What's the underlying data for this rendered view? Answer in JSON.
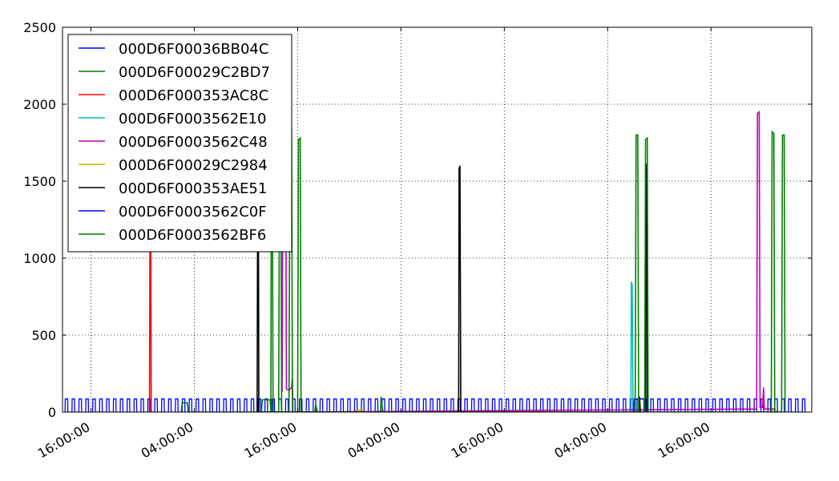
{
  "chart_data": {
    "type": "line",
    "title": "",
    "xlabel": "",
    "ylabel": "",
    "ylim": [
      0,
      2500
    ],
    "yticks": [
      0,
      500,
      1000,
      1500,
      2000,
      2500
    ],
    "x_unit": "hours",
    "xlim": [
      -3.3,
      83.7
    ],
    "xticks": [
      {
        "x": 0,
        "label": "16:00:00"
      },
      {
        "x": 12,
        "label": "04:00:00"
      },
      {
        "x": 24,
        "label": "16:00:00"
      },
      {
        "x": 36,
        "label": "04:00:00"
      },
      {
        "x": 48,
        "label": "16:00:00"
      },
      {
        "x": 60,
        "label": "04:00:00"
      },
      {
        "x": 72,
        "label": "16:00:00"
      }
    ],
    "grid": true,
    "legend_position": "top-left",
    "series": [
      {
        "name": "000D6F00036BB04C",
        "color": "#0000ff",
        "pattern": {
          "type": "cyclic",
          "start": -3.0,
          "end": 83.2,
          "period": 0.8,
          "pulse": 0.3,
          "high": 85,
          "low": 0
        },
        "points": []
      },
      {
        "name": "000D6F00029C2BD7",
        "color": "#008000",
        "points": [
          [
            10.5,
            0
          ],
          [
            10.6,
            60
          ],
          [
            11.2,
            60
          ],
          [
            11.3,
            0
          ],
          [
            26.0,
            0
          ],
          [
            26.1,
            50
          ],
          [
            26.3,
            0
          ],
          [
            33.6,
            0
          ],
          [
            33.7,
            100
          ],
          [
            33.9,
            0
          ]
        ]
      },
      {
        "name": "000D6F000353AC8C",
        "color": "#ff0000",
        "points": [
          [
            6.8,
            0
          ],
          [
            6.85,
            1100
          ],
          [
            6.95,
            1100
          ],
          [
            7.0,
            0
          ]
        ]
      },
      {
        "name": "000D6F0003562E10",
        "color": "#00bfbf",
        "points": [
          [
            62.7,
            0
          ],
          [
            62.75,
            840
          ],
          [
            62.85,
            830
          ],
          [
            62.95,
            0
          ]
        ]
      },
      {
        "name": "000D6F0003562C48",
        "color": "#bf00bf",
        "points": [
          [
            22.2,
            130
          ],
          [
            22.3,
            2050
          ],
          [
            22.6,
            2060
          ],
          [
            22.7,
            150
          ],
          [
            23.0,
            140
          ],
          [
            23.3,
            160
          ],
          [
            23.4,
            220
          ],
          [
            23.45,
            0
          ],
          [
            77.3,
            20
          ],
          [
            77.4,
            1940
          ],
          [
            77.6,
            1950
          ],
          [
            77.7,
            30
          ],
          [
            78.0,
            30
          ],
          [
            78.1,
            160
          ],
          [
            78.2,
            20
          ],
          [
            79.5,
            20
          ]
        ]
      },
      {
        "name": "000D6F00029C2984",
        "color": "#bfbf00",
        "points": [
          [
            30.7,
            0
          ],
          [
            30.8,
            15
          ],
          [
            31.5,
            15
          ],
          [
            31.6,
            0
          ],
          [
            79.0,
            0
          ],
          [
            79.1,
            8
          ],
          [
            79.5,
            8
          ],
          [
            79.6,
            0
          ]
        ]
      },
      {
        "name": "000D6F000353AE51",
        "color": "#000000",
        "points": [
          [
            19.3,
            0
          ],
          [
            19.35,
            1150
          ],
          [
            19.45,
            1150
          ],
          [
            19.5,
            0
          ],
          [
            42.7,
            0
          ],
          [
            42.75,
            1580
          ],
          [
            42.85,
            1600
          ],
          [
            42.95,
            0
          ],
          [
            63.6,
            0
          ],
          [
            63.7,
            100
          ],
          [
            63.8,
            0
          ],
          [
            64.4,
            0
          ],
          [
            64.45,
            1610
          ],
          [
            64.55,
            1600
          ],
          [
            64.6,
            0
          ]
        ]
      },
      {
        "name": "000D6F0003562C0F",
        "color": "#0000ff",
        "points": [
          [
            63.0,
            0
          ],
          [
            63.1,
            85
          ],
          [
            64.3,
            85
          ],
          [
            64.4,
            0
          ]
        ]
      },
      {
        "name": "000D6F0003562BF6",
        "color": "#008000",
        "points": [
          [
            23.0,
            0
          ],
          [
            23.1,
            1830
          ],
          [
            23.3,
            1840
          ],
          [
            23.4,
            0
          ],
          [
            24.0,
            0
          ],
          [
            24.1,
            1770
          ],
          [
            24.3,
            1780
          ],
          [
            24.4,
            0
          ],
          [
            63.2,
            0
          ],
          [
            63.3,
            1800
          ],
          [
            63.5,
            1800
          ],
          [
            63.6,
            0
          ],
          [
            64.3,
            0
          ],
          [
            64.4,
            1770
          ],
          [
            64.6,
            1780
          ],
          [
            64.7,
            0
          ],
          [
            79.0,
            0
          ],
          [
            79.1,
            1820
          ],
          [
            79.3,
            1810
          ],
          [
            79.4,
            0
          ],
          [
            80.2,
            0
          ],
          [
            80.3,
            1800
          ],
          [
            80.5,
            1800
          ],
          [
            80.6,
            0
          ]
        ]
      }
    ],
    "overlay_series": [
      {
        "name": "000D6F00029C2BD7",
        "color": "#008000",
        "points": [
          [
            19.8,
            0
          ],
          [
            19.9,
            80
          ],
          [
            20.8,
            80
          ],
          [
            20.9,
            0
          ],
          [
            20.95,
            1820
          ],
          [
            21.05,
            1840
          ],
          [
            21.15,
            0
          ],
          [
            21.8,
            0
          ],
          [
            21.9,
            1770
          ],
          [
            22.05,
            1780
          ],
          [
            22.15,
            0
          ]
        ]
      }
    ]
  }
}
